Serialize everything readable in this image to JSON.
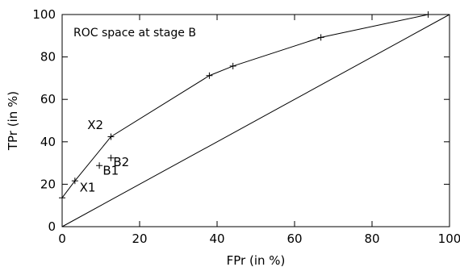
{
  "chart_data": {
    "type": "line",
    "title": "ROC space at stage B",
    "xlabel": "FPr (in %)",
    "ylabel": "TPr (in %)",
    "xlim": [
      0,
      100
    ],
    "ylim": [
      0,
      100
    ],
    "xticks": [
      0,
      20,
      40,
      60,
      80,
      100
    ],
    "yticks": [
      0,
      20,
      40,
      60,
      80,
      100
    ],
    "grid": false,
    "legend_position": "top-left",
    "series": [
      {
        "x": [
          0,
          3.3,
          12.6,
          38,
          44.1,
          66.8,
          94.5,
          100
        ],
        "y": [
          13.6,
          21.6,
          42.4,
          71.2,
          75.7,
          89.2,
          100,
          100
        ],
        "style": "line-with-plus-markers"
      },
      {
        "x": [
          0,
          100
        ],
        "y": [
          0,
          100
        ],
        "style": "diagonal-line"
      },
      {
        "x": [
          9.6,
          12.6
        ],
        "y": [
          28.8,
          32.4
        ],
        "style": "plus-markers"
      }
    ],
    "annotations": [
      {
        "text": "X1",
        "x": 4.5,
        "y": 16.5
      },
      {
        "text": "X2",
        "x": 6.5,
        "y": 46
      },
      {
        "text": "B1",
        "x": 10.5,
        "y": 24.5
      },
      {
        "text": "B2",
        "x": 13.2,
        "y": 28.5
      }
    ]
  }
}
